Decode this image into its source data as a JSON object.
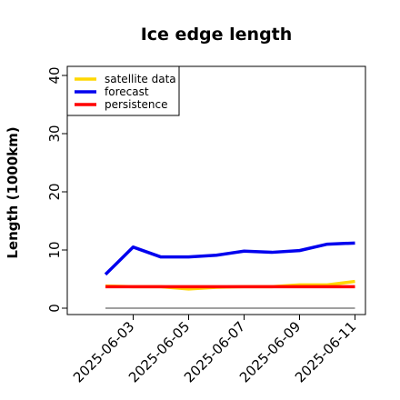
{
  "chart_data": {
    "type": "line",
    "title": "Ice edge length",
    "xlabel": "",
    "ylabel": "Length (1000km)",
    "ylim": [
      0,
      40
    ],
    "yticks": [
      0,
      10,
      20,
      30,
      40
    ],
    "x": [
      "2025-06-02",
      "2025-06-03",
      "2025-06-04",
      "2025-06-05",
      "2025-06-06",
      "2025-06-07",
      "2025-06-08",
      "2025-06-09",
      "2025-06-10",
      "2025-06-11"
    ],
    "xtick_labels": [
      {
        "label": "2025-06-03",
        "color": "#228b22"
      },
      {
        "label": "2025-06-05",
        "color": "#000000"
      },
      {
        "label": "2025-06-07",
        "color": "#000000"
      },
      {
        "label": "2025-06-09",
        "color": "#000000"
      },
      {
        "label": "2025-06-11",
        "color": "#000000"
      }
    ],
    "series": [
      {
        "name": "satellite data",
        "color": "#ffd700",
        "values": [
          3.8,
          3.7,
          3.7,
          3.3,
          3.6,
          3.7,
          3.7,
          4.0,
          4.0,
          4.6
        ]
      },
      {
        "name": "forecast",
        "color": "#0000ee",
        "values": [
          5.8,
          10.5,
          8.8,
          8.8,
          9.1,
          9.8,
          9.6,
          9.9,
          11.0,
          11.2
        ]
      },
      {
        "name": "persistence",
        "color": "#ff0000",
        "values": [
          3.7,
          3.7,
          3.7,
          3.7,
          3.7,
          3.7,
          3.7,
          3.7,
          3.7,
          3.7
        ]
      }
    ],
    "baseline": {
      "value": 0,
      "color": "#808080"
    },
    "legend_position": "top-left",
    "grid": false
  }
}
